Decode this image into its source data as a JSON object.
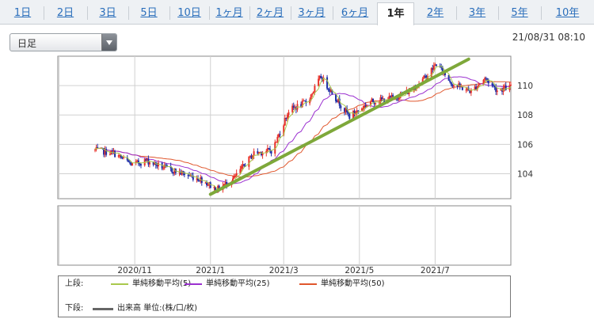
{
  "tabs": [
    {
      "label": "1日",
      "active": false
    },
    {
      "label": "2日",
      "active": false
    },
    {
      "label": "3日",
      "active": false
    },
    {
      "label": "5日",
      "active": false
    },
    {
      "label": "10日",
      "active": false
    },
    {
      "label": "1ヶ月",
      "active": false
    },
    {
      "label": "2ヶ月",
      "active": false
    },
    {
      "label": "3ヶ月",
      "active": false
    },
    {
      "label": "6ヶ月",
      "active": false
    },
    {
      "label": "1年",
      "active": true
    },
    {
      "label": "2年",
      "active": false
    },
    {
      "label": "3年",
      "active": false
    },
    {
      "label": "5年",
      "active": false
    },
    {
      "label": "10年",
      "active": false
    }
  ],
  "period_select": {
    "value": "日足"
  },
  "timestamp": "21/08/31 08:10",
  "legend": {
    "upper_label": "上段:",
    "lower_label": "下段:",
    "upper_items": [
      {
        "label": "単純移動平均(5)",
        "color": "#a9c94c"
      },
      {
        "label": "単純移動平均(25)",
        "color": "#9b30d0"
      },
      {
        "label": "単純移動平均(50)",
        "color": "#e0562c"
      }
    ],
    "lower_items": [
      {
        "label": "出来高 単位:(株/口/枚)",
        "color": "#666666"
      }
    ]
  },
  "colors": {
    "up": "#e8322a",
    "down": "#1f2fa8",
    "trendline": "#7ea83a"
  },
  "chart_data": {
    "type": "candlestick",
    "x_ticks": [
      "2020/11",
      "2021/1",
      "2021/3",
      "2021/5",
      "2021/7"
    ],
    "y_ticks": [
      104,
      106,
      108,
      110
    ],
    "ylim": [
      102.3,
      112.0
    ],
    "grid": true,
    "close_path": [
      {
        "date": "2020/09/30",
        "close": 105.6
      },
      {
        "date": "2020/10/15",
        "close": 105.4
      },
      {
        "date": "2020/10/30",
        "close": 104.6
      },
      {
        "date": "2020/11/10",
        "close": 104.9
      },
      {
        "date": "2020/11/25",
        "close": 104.4
      },
      {
        "date": "2020/12/10",
        "close": 104.0
      },
      {
        "date": "2020/12/25",
        "close": 103.6
      },
      {
        "date": "2021/01/06",
        "close": 102.9
      },
      {
        "date": "2021/01/20",
        "close": 103.7
      },
      {
        "date": "2021/02/05",
        "close": 105.4
      },
      {
        "date": "2021/02/20",
        "close": 105.6
      },
      {
        "date": "2021/03/05",
        "close": 108.3
      },
      {
        "date": "2021/03/20",
        "close": 108.9
      },
      {
        "date": "2021/03/31",
        "close": 110.6
      },
      {
        "date": "2021/04/15",
        "close": 108.8
      },
      {
        "date": "2021/04/23",
        "close": 107.9
      },
      {
        "date": "2021/05/10",
        "close": 108.9
      },
      {
        "date": "2021/05/25",
        "close": 109.1
      },
      {
        "date": "2021/06/10",
        "close": 109.6
      },
      {
        "date": "2021/06/25",
        "close": 110.7
      },
      {
        "date": "2021/07/02",
        "close": 111.5
      },
      {
        "date": "2021/07/15",
        "close": 110.1
      },
      {
        "date": "2021/07/30",
        "close": 109.6
      },
      {
        "date": "2021/08/10",
        "close": 110.5
      },
      {
        "date": "2021/08/20",
        "close": 109.7
      },
      {
        "date": "2021/08/31",
        "close": 109.9
      }
    ],
    "trendline": [
      {
        "date": "2021/01/01",
        "value": 102.6
      },
      {
        "date": "2021/07/28",
        "value": 111.8
      }
    ]
  }
}
